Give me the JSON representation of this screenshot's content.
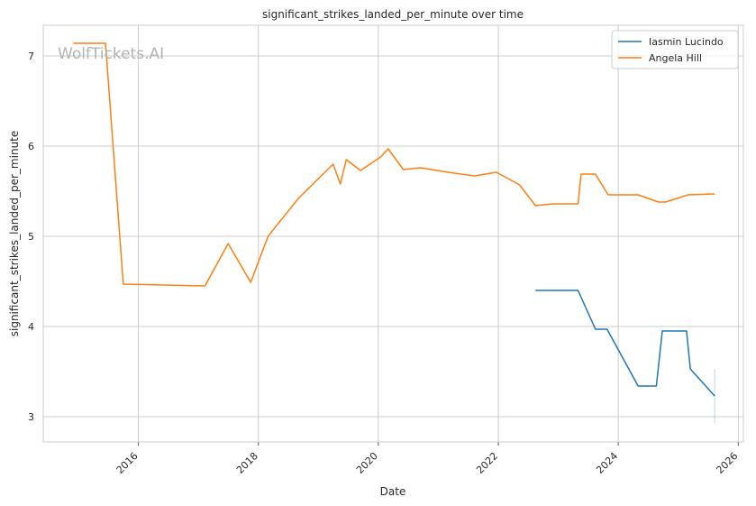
{
  "chart_data": {
    "type": "line",
    "title": "significant_strikes_landed_per_minute over time",
    "xlabel": "Date",
    "ylabel": "significant_strikes_landed_per_minute",
    "watermark": "WolfTickets.AI",
    "xlim": [
      "2014-06-01",
      "2026-02-01"
    ],
    "ylim": [
      2.72,
      7.34
    ],
    "x_ticks": [
      {
        "date": "2016-01-01",
        "label": "2016"
      },
      {
        "date": "2018-01-01",
        "label": "2018"
      },
      {
        "date": "2020-01-01",
        "label": "2020"
      },
      {
        "date": "2022-01-01",
        "label": "2022"
      },
      {
        "date": "2024-01-01",
        "label": "2024"
      },
      {
        "date": "2026-01-01",
        "label": "2026"
      }
    ],
    "y_ticks": [
      3,
      4,
      5,
      6,
      7
    ],
    "grid": true,
    "legend_position": "top-right",
    "series": [
      {
        "name": "Iasmin Lucindo",
        "color": "#1f77b4",
        "points": [
          [
            "2022-08-15",
            4.4
          ],
          [
            "2023-05-01",
            4.4
          ],
          [
            "2023-08-15",
            3.97
          ],
          [
            "2023-10-25",
            3.97
          ],
          [
            "2024-05-01",
            3.34
          ],
          [
            "2024-08-20",
            3.34
          ],
          [
            "2024-09-25",
            3.95
          ],
          [
            "2025-02-20",
            3.95
          ],
          [
            "2025-03-15",
            3.53
          ],
          [
            "2025-08-10",
            3.23
          ]
        ],
        "band": {
          "date": "2025-08-10",
          "low": 2.93,
          "high": 3.53
        }
      },
      {
        "name": "Angela Hill",
        "color": "#ff7f0e",
        "points": [
          [
            "2014-12-01",
            7.14
          ],
          [
            "2015-06-15",
            7.14
          ],
          [
            "2015-10-01",
            4.47
          ],
          [
            "2017-02-10",
            4.45
          ],
          [
            "2017-07-01",
            4.92
          ],
          [
            "2017-11-15",
            4.49
          ],
          [
            "2018-03-01",
            5.0
          ],
          [
            "2018-09-01",
            5.42
          ],
          [
            "2019-04-01",
            5.8
          ],
          [
            "2019-05-15",
            5.58
          ],
          [
            "2019-06-20",
            5.85
          ],
          [
            "2019-09-15",
            5.73
          ],
          [
            "2020-01-15",
            5.88
          ],
          [
            "2020-03-01",
            5.97
          ],
          [
            "2020-06-01",
            5.74
          ],
          [
            "2020-09-15",
            5.76
          ],
          [
            "2021-03-01",
            5.71
          ],
          [
            "2021-08-10",
            5.67
          ],
          [
            "2021-12-20",
            5.71
          ],
          [
            "2022-05-10",
            5.57
          ],
          [
            "2022-08-15",
            5.34
          ],
          [
            "2022-12-01",
            5.36
          ],
          [
            "2023-05-01",
            5.36
          ],
          [
            "2023-05-20",
            5.69
          ],
          [
            "2023-08-15",
            5.69
          ],
          [
            "2023-11-01",
            5.46
          ],
          [
            "2024-05-01",
            5.46
          ],
          [
            "2024-09-01",
            5.38
          ],
          [
            "2024-10-15",
            5.38
          ],
          [
            "2025-03-01",
            5.46
          ],
          [
            "2025-08-10",
            5.47
          ]
        ]
      }
    ]
  }
}
